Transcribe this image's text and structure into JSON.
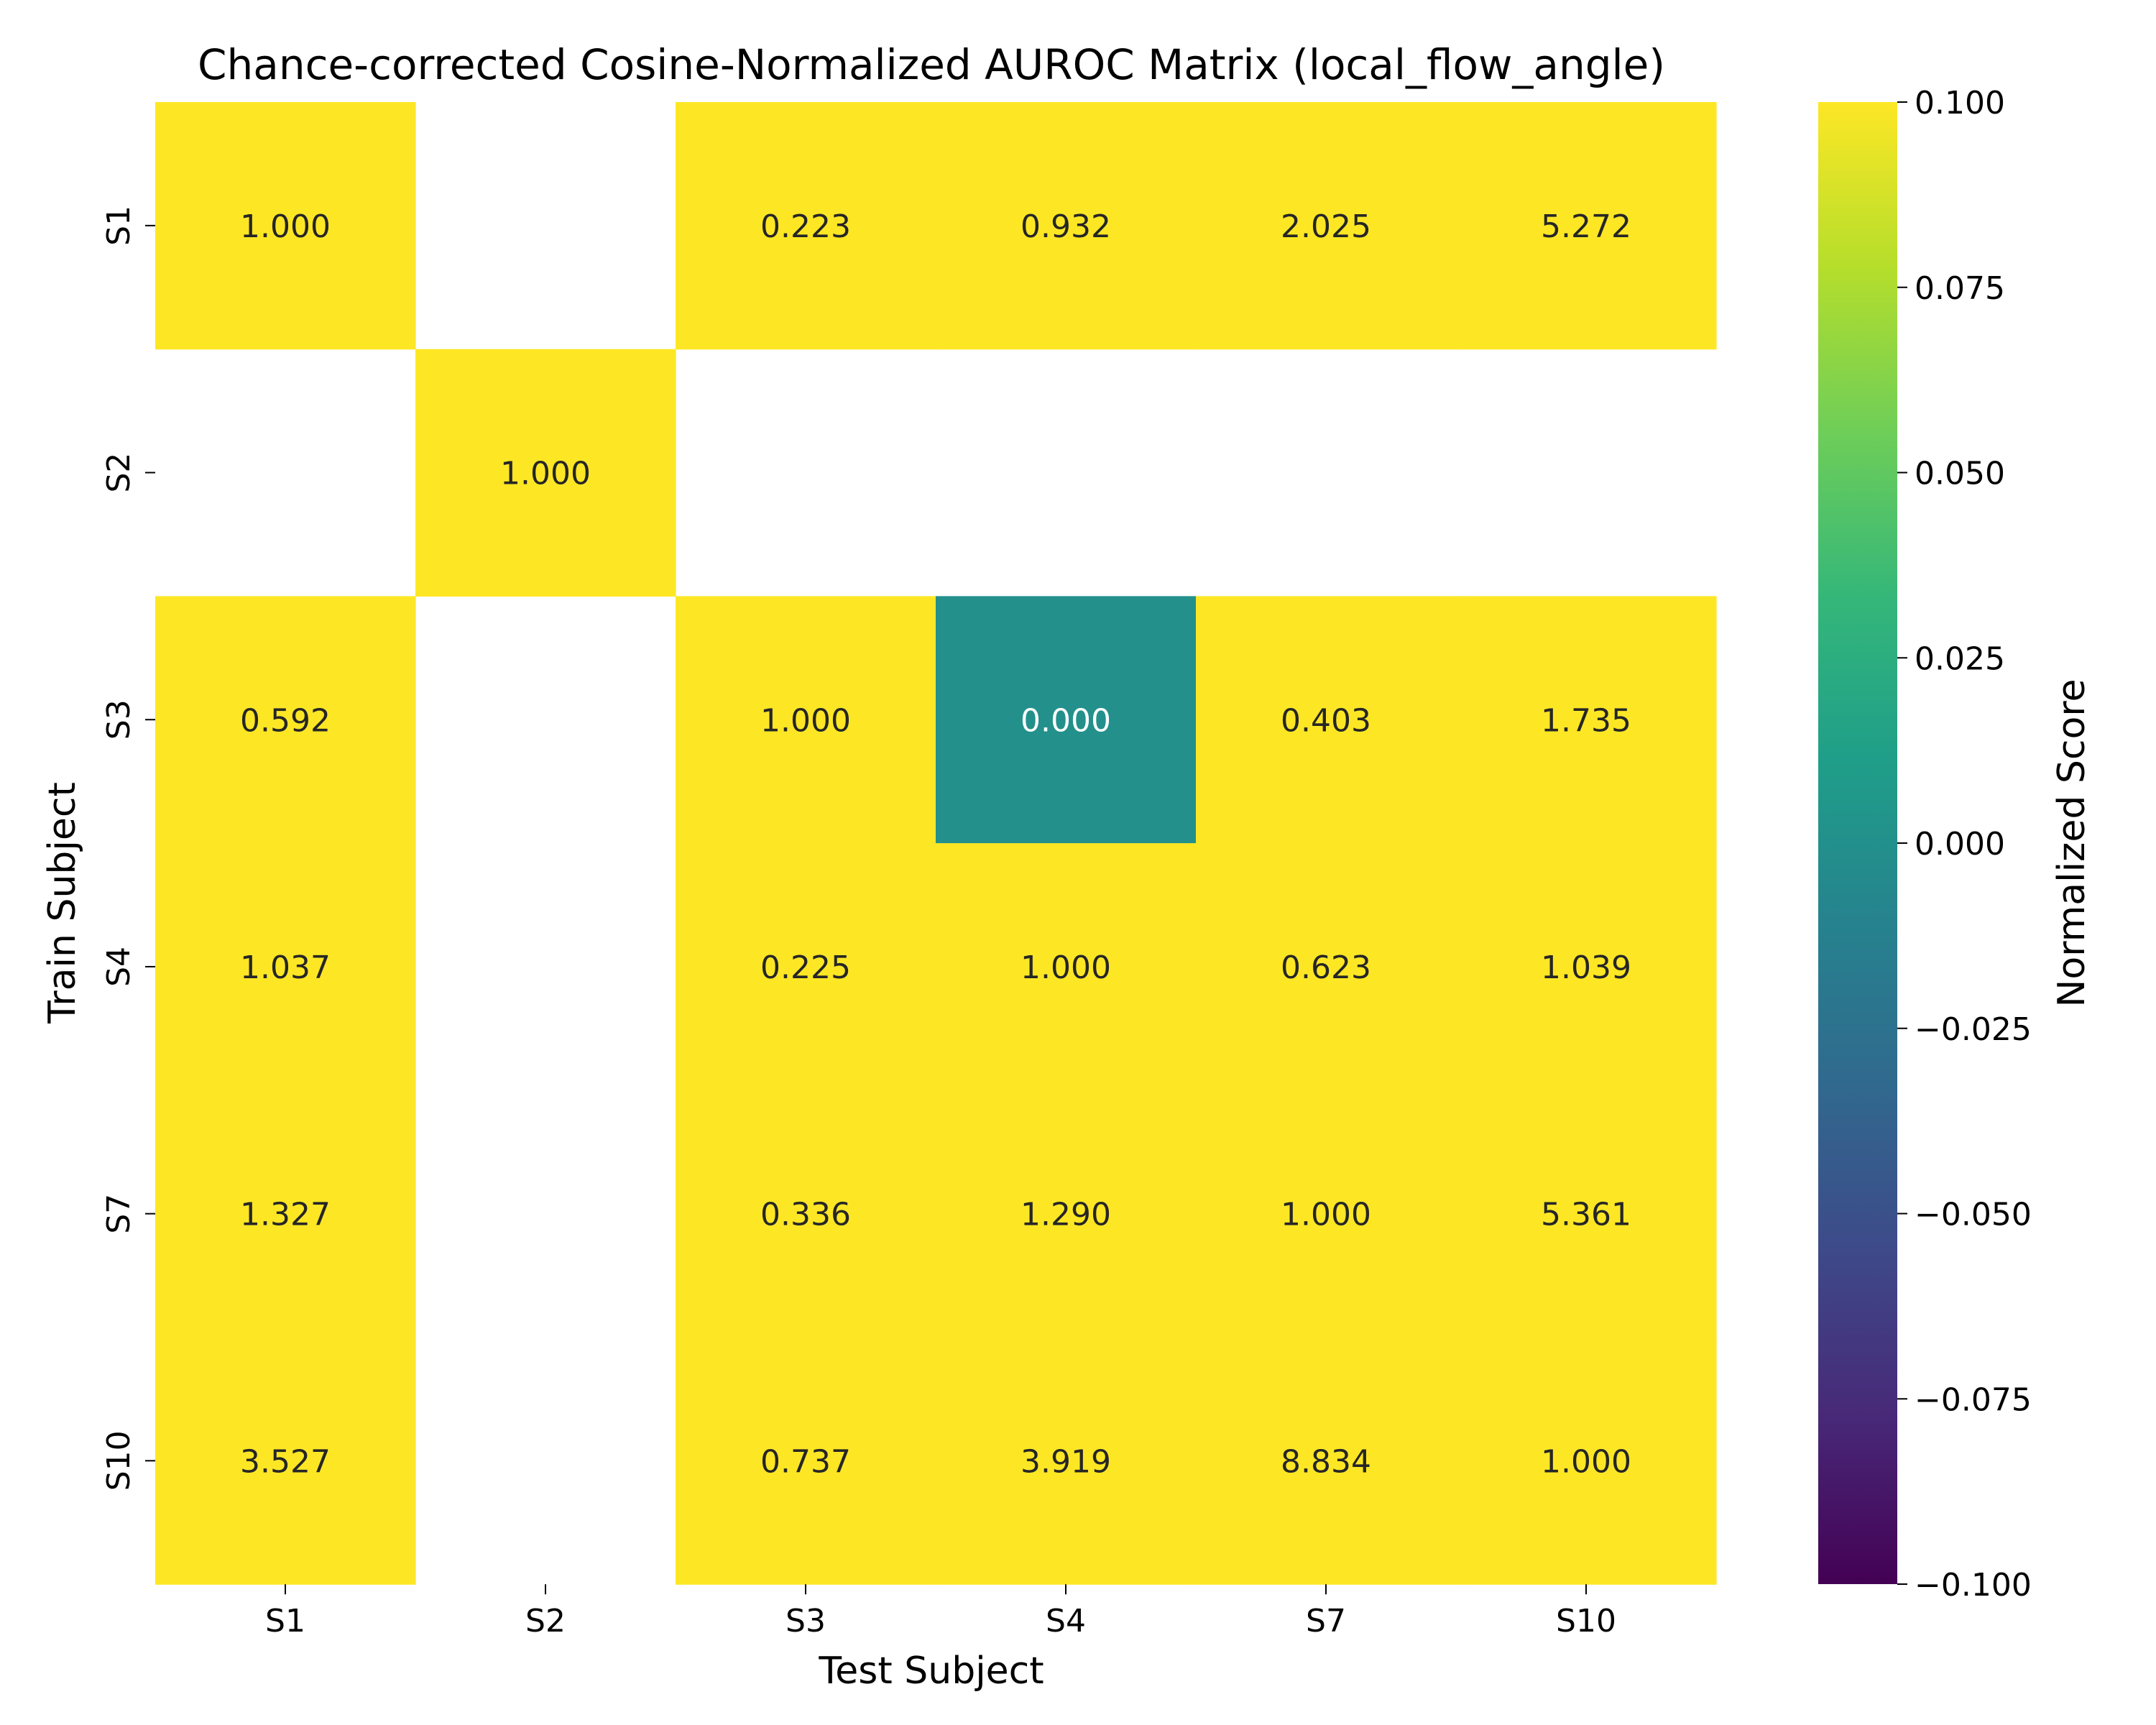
{
  "chart_data": {
    "type": "heatmap",
    "title": "Chance-corrected Cosine-Normalized AUROC Matrix (local_flow_angle)",
    "xlabel": "Test Subject",
    "ylabel": "Train Subject",
    "x_categories": [
      "S1",
      "S2",
      "S3",
      "S4",
      "S7",
      "S10"
    ],
    "y_categories": [
      "S1",
      "S2",
      "S3",
      "S4",
      "S7",
      "S10"
    ],
    "values": [
      [
        1.0,
        null,
        0.223,
        0.932,
        2.025,
        5.272
      ],
      [
        null,
        1.0,
        null,
        null,
        null,
        null
      ],
      [
        0.592,
        null,
        1.0,
        0.0,
        0.403,
        1.735
      ],
      [
        1.037,
        null,
        0.225,
        1.0,
        0.623,
        1.039
      ],
      [
        1.327,
        null,
        0.336,
        1.29,
        1.0,
        5.361
      ],
      [
        3.527,
        null,
        0.737,
        3.919,
        8.834,
        1.0
      ]
    ],
    "annotation_format": "0.000",
    "colormap": "viridis",
    "colorbar": {
      "label": "Normalized Score",
      "vmin": -0.1,
      "vmax": 0.1,
      "ticks": [
        0.1,
        0.075,
        0.05,
        0.025,
        0.0,
        -0.025,
        -0.05,
        -0.075,
        -0.1
      ],
      "tick_labels": [
        "0.100",
        "0.075",
        "0.050",
        "0.025",
        "0.000",
        "−0.025",
        "−0.050",
        "−0.075",
        "−0.100"
      ]
    },
    "missing_color": "#ffffff"
  }
}
